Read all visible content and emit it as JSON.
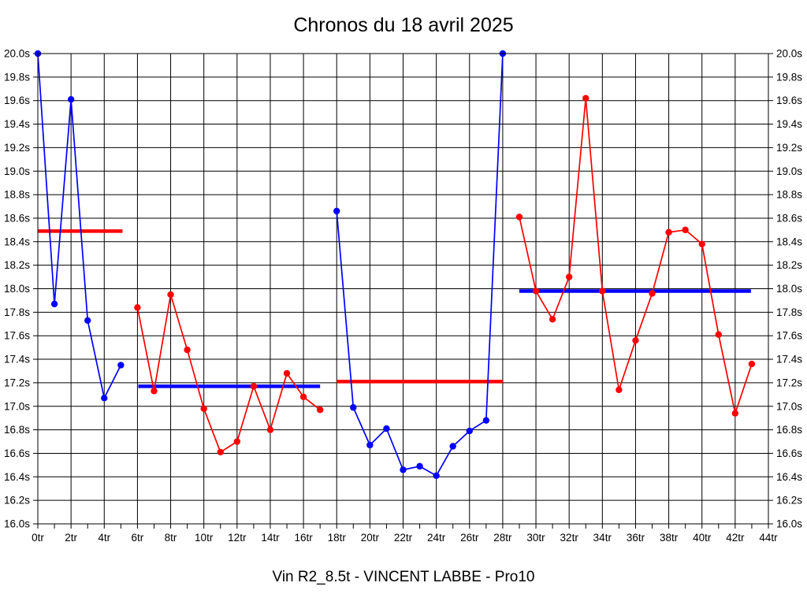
{
  "chart_data": {
    "type": "line",
    "title": "Chronos du 18 avril 2025",
    "subtitle": "Vin R2_8.5t - VINCENT LABBE - Pro10",
    "grid": true,
    "legend": false,
    "background": "#ffffff",
    "grid_color": "#000000",
    "x_axis": {
      "unit": "tr",
      "min": 0,
      "max": 44,
      "minor_tick_step": 1,
      "label_step": 2,
      "gridline_step": 2,
      "tick_labels": [
        "0tr",
        "2tr",
        "4tr",
        "6tr",
        "8tr",
        "10tr",
        "12tr",
        "14tr",
        "16tr",
        "18tr",
        "20tr",
        "22tr",
        "24tr",
        "26tr",
        "28tr",
        "30tr",
        "32tr",
        "34tr",
        "36tr",
        "38tr",
        "40tr",
        "42tr",
        "44tr"
      ]
    },
    "y_axis": {
      "unit": "s",
      "min": 16.0,
      "max": 20.0,
      "step": 0.2,
      "labels_both_sides": true,
      "tick_labels": [
        "20.0s",
        "19.8s",
        "19.6s",
        "19.4s",
        "19.2s",
        "19.0s",
        "18.8s",
        "18.6s",
        "18.4s",
        "18.2s",
        "18.0s",
        "17.8s",
        "17.6s",
        "17.4s",
        "17.2s",
        "17.0s",
        "16.8s",
        "16.6s",
        "16.4s",
        "16.2s",
        "16.0s"
      ]
    },
    "series": [
      {
        "name": "chrono-segment-1",
        "color": "#0000ff",
        "points": [
          [
            0,
            20.0
          ],
          [
            1,
            17.87
          ],
          [
            2,
            19.61
          ],
          [
            3,
            17.73
          ],
          [
            4,
            17.07
          ],
          [
            5,
            17.35
          ]
        ]
      },
      {
        "name": "chrono-segment-2",
        "color": "#ff0000",
        "points": [
          [
            6,
            17.84
          ],
          [
            7,
            17.13
          ],
          [
            8,
            17.95
          ],
          [
            9,
            17.48
          ],
          [
            10,
            16.98
          ],
          [
            11,
            16.61
          ],
          [
            12,
            16.7
          ],
          [
            13,
            17.17
          ],
          [
            14,
            16.8
          ],
          [
            15,
            17.28
          ],
          [
            16,
            17.08
          ],
          [
            17,
            16.97
          ]
        ]
      },
      {
        "name": "chrono-segment-3",
        "color": "#0000ff",
        "points": [
          [
            18,
            18.66
          ],
          [
            19,
            16.99
          ],
          [
            20,
            16.67
          ],
          [
            21,
            16.81
          ],
          [
            22,
            16.46
          ],
          [
            23,
            16.49
          ],
          [
            24,
            16.41
          ],
          [
            25,
            16.66
          ],
          [
            26,
            16.79
          ],
          [
            27,
            16.88
          ],
          [
            28,
            20.0
          ]
        ]
      },
      {
        "name": "chrono-segment-4",
        "color": "#ff0000",
        "points": [
          [
            29,
            18.61
          ],
          [
            30,
            17.98
          ],
          [
            31,
            17.74
          ],
          [
            32,
            18.1
          ],
          [
            33,
            19.62
          ],
          [
            34,
            17.98
          ],
          [
            35,
            17.14
          ],
          [
            36,
            17.56
          ],
          [
            37,
            17.96
          ],
          [
            38,
            18.48
          ],
          [
            39,
            18.5
          ],
          [
            40,
            18.38
          ],
          [
            41,
            17.61
          ],
          [
            42,
            16.94
          ],
          [
            43,
            17.36
          ]
        ]
      }
    ],
    "mean_lines": [
      {
        "name": "mean-line-1",
        "color": "#ff0000",
        "y": 18.49,
        "x1": 0.0,
        "x2": 5.1
      },
      {
        "name": "mean-line-2",
        "color": "#0000ff",
        "y": 17.17,
        "x1": 6.05,
        "x2": 17.0
      },
      {
        "name": "mean-line-3",
        "color": "#ff0000",
        "y": 17.21,
        "x1": 18.0,
        "x2": 28.0
      },
      {
        "name": "mean-line-4",
        "color": "#0000ff",
        "y": 17.98,
        "x1": 29.0,
        "x2": 42.95
      }
    ]
  }
}
